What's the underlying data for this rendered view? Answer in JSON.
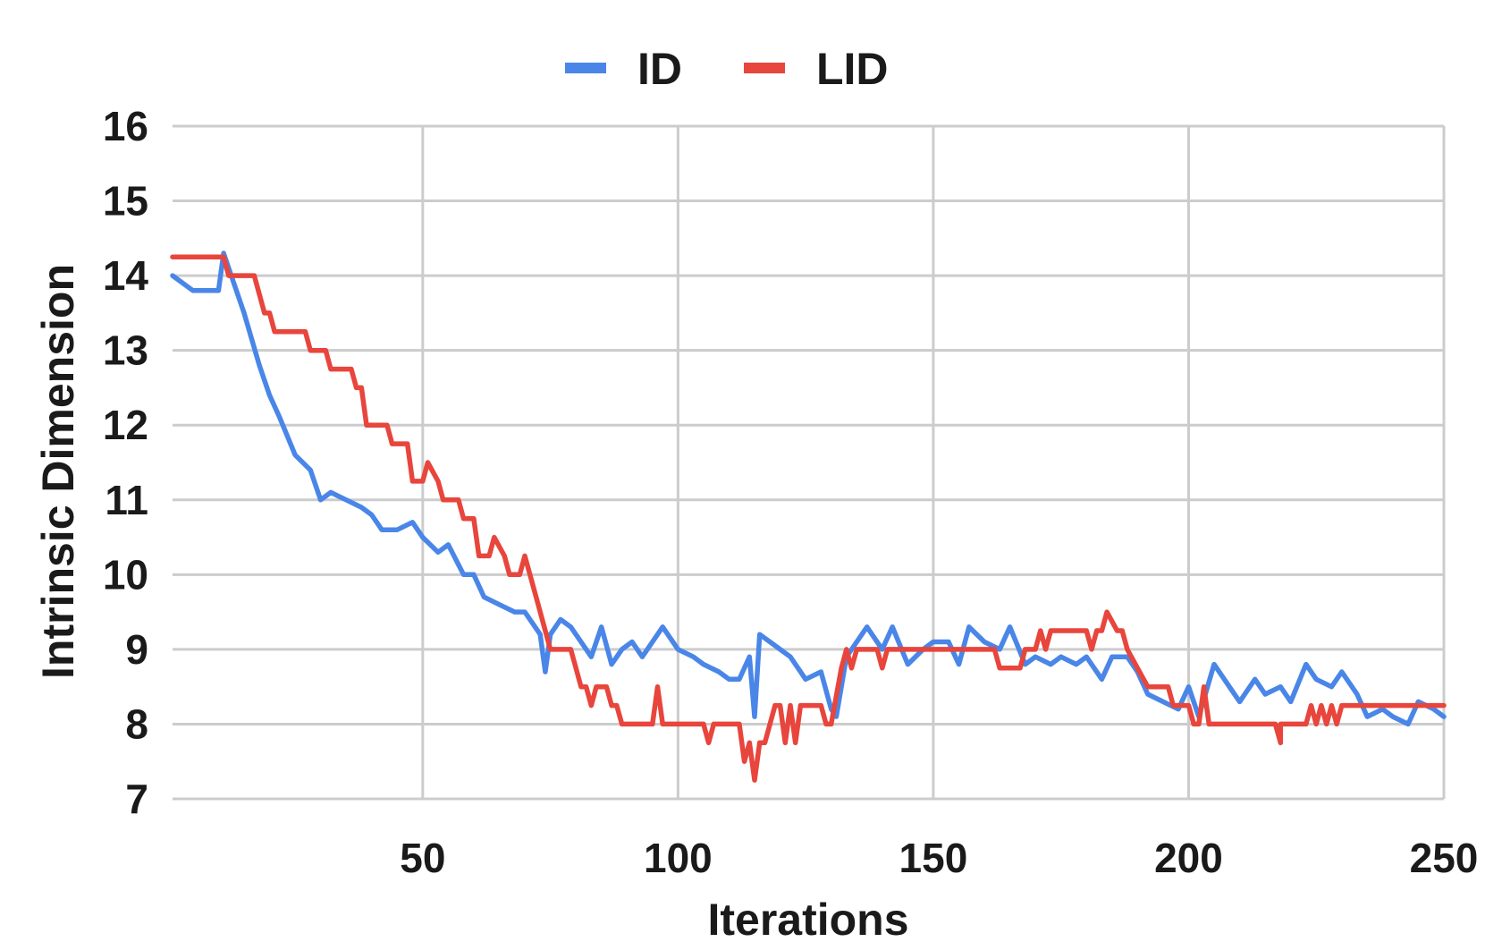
{
  "chart_data": {
    "type": "line",
    "title": "",
    "xlabel": "Iterations",
    "ylabel": "Intrinsic Dimension",
    "xlim": [
      1,
      250
    ],
    "ylim": [
      7,
      16
    ],
    "xticks": [
      50,
      100,
      150,
      200,
      250
    ],
    "yticks": [
      7,
      8,
      9,
      10,
      11,
      12,
      13,
      14,
      15,
      16
    ],
    "grid": true,
    "legend_position": "top-center",
    "colors": {
      "ID": "#4a86e8",
      "LID": "#e8453c",
      "grid": "#cccccc"
    },
    "series": [
      {
        "name": "ID",
        "x": [
          1,
          5,
          10,
          11,
          12,
          15,
          18,
          20,
          22,
          25,
          28,
          30,
          32,
          35,
          38,
          40,
          42,
          45,
          48,
          50,
          53,
          55,
          58,
          60,
          62,
          65,
          68,
          70,
          72,
          73,
          74,
          75,
          77,
          79,
          81,
          83,
          85,
          87,
          89,
          91,
          93,
          95,
          97,
          100,
          103,
          105,
          108,
          110,
          112,
          114,
          115,
          116,
          118,
          120,
          122,
          125,
          128,
          130,
          131,
          133,
          135,
          137,
          140,
          142,
          145,
          148,
          150,
          153,
          155,
          157,
          160,
          163,
          165,
          168,
          170,
          173,
          175,
          178,
          180,
          183,
          185,
          188,
          190,
          192,
          195,
          198,
          200,
          202,
          205,
          208,
          210,
          213,
          215,
          218,
          220,
          223,
          225,
          228,
          230,
          233,
          235,
          238,
          240,
          243,
          245,
          248,
          250
        ],
        "values": [
          14.0,
          13.8,
          13.8,
          14.3,
          14.1,
          13.5,
          12.8,
          12.4,
          12.1,
          11.6,
          11.4,
          11.0,
          11.1,
          11.0,
          10.9,
          10.8,
          10.6,
          10.6,
          10.7,
          10.5,
          10.3,
          10.4,
          10.0,
          10.0,
          9.7,
          9.6,
          9.5,
          9.5,
          9.3,
          9.2,
          8.7,
          9.2,
          9.4,
          9.3,
          9.1,
          8.9,
          9.3,
          8.8,
          9.0,
          9.1,
          8.9,
          9.1,
          9.3,
          9.0,
          8.9,
          8.8,
          8.7,
          8.6,
          8.6,
          8.9,
          8.1,
          9.2,
          9.1,
          9.0,
          8.9,
          8.6,
          8.7,
          8.2,
          8.1,
          8.9,
          9.1,
          9.3,
          9.0,
          9.3,
          8.8,
          9.0,
          9.1,
          9.1,
          8.8,
          9.3,
          9.1,
          9.0,
          9.3,
          8.8,
          8.9,
          8.8,
          8.9,
          8.8,
          8.9,
          8.6,
          8.9,
          8.9,
          8.7,
          8.4,
          8.3,
          8.2,
          8.5,
          8.1,
          8.8,
          8.5,
          8.3,
          8.6,
          8.4,
          8.5,
          8.3,
          8.8,
          8.6,
          8.5,
          8.7,
          8.4,
          8.1,
          8.2,
          8.1,
          8.0,
          8.3,
          8.2,
          8.1
        ]
      },
      {
        "name": "LID",
        "x": [
          1,
          11,
          12,
          17,
          18,
          19,
          20,
          21,
          27,
          28,
          31,
          32,
          36,
          37,
          38,
          39,
          43,
          44,
          47,
          48,
          50,
          51,
          53,
          54,
          57,
          58,
          60,
          61,
          63,
          64,
          66,
          67,
          69,
          70,
          72,
          75,
          76,
          79,
          80,
          81,
          82,
          83,
          84,
          86,
          87,
          88,
          89,
          95,
          96,
          97,
          104,
          105,
          106,
          107,
          112,
          113,
          114,
          115,
          116,
          117,
          119,
          120,
          121,
          122,
          123,
          124,
          128,
          129,
          130,
          132,
          133,
          134,
          135,
          136,
          139,
          140,
          141,
          142,
          162,
          163,
          167,
          168,
          170,
          171,
          172,
          173,
          174,
          175,
          180,
          181,
          182,
          183,
          184,
          186,
          187,
          188,
          190,
          192,
          193,
          196,
          197,
          200,
          201,
          202,
          203,
          204,
          217,
          218,
          218,
          223,
          224,
          225,
          226,
          227,
          228,
          229,
          230,
          231,
          232,
          233,
          240,
          241,
          250
        ],
        "values": [
          14.25,
          14.25,
          14.0,
          14.0,
          13.75,
          13.5,
          13.5,
          13.25,
          13.25,
          13.0,
          13.0,
          12.75,
          12.75,
          12.5,
          12.5,
          12.0,
          12.0,
          11.75,
          11.75,
          11.25,
          11.25,
          11.5,
          11.25,
          11.0,
          11.0,
          10.75,
          10.75,
          10.25,
          10.25,
          10.5,
          10.25,
          10.0,
          10.0,
          10.25,
          9.75,
          9.0,
          9.0,
          9.0,
          8.75,
          8.5,
          8.5,
          8.25,
          8.5,
          8.5,
          8.25,
          8.25,
          8.0,
          8.0,
          8.5,
          8.0,
          8.0,
          8.0,
          7.75,
          8.0,
          8.0,
          7.5,
          7.75,
          7.25,
          7.75,
          7.75,
          8.25,
          8.25,
          7.75,
          8.25,
          7.75,
          8.25,
          8.25,
          8.0,
          8.0,
          8.75,
          9.0,
          8.75,
          9.0,
          9.0,
          9.0,
          8.75,
          9.0,
          9.0,
          9.0,
          8.75,
          8.75,
          9.0,
          9.0,
          9.25,
          9.0,
          9.25,
          9.25,
          9.25,
          9.25,
          9.0,
          9.25,
          9.25,
          9.5,
          9.25,
          9.25,
          9.0,
          8.75,
          8.5,
          8.5,
          8.5,
          8.25,
          8.25,
          8.0,
          8.0,
          8.5,
          8.0,
          8.0,
          7.75,
          8.0,
          8.0,
          8.25,
          8.0,
          8.25,
          8.0,
          8.25,
          8.0,
          8.25,
          8.25,
          8.25,
          8.25,
          8.25,
          8.25,
          8.25
        ]
      }
    ]
  }
}
